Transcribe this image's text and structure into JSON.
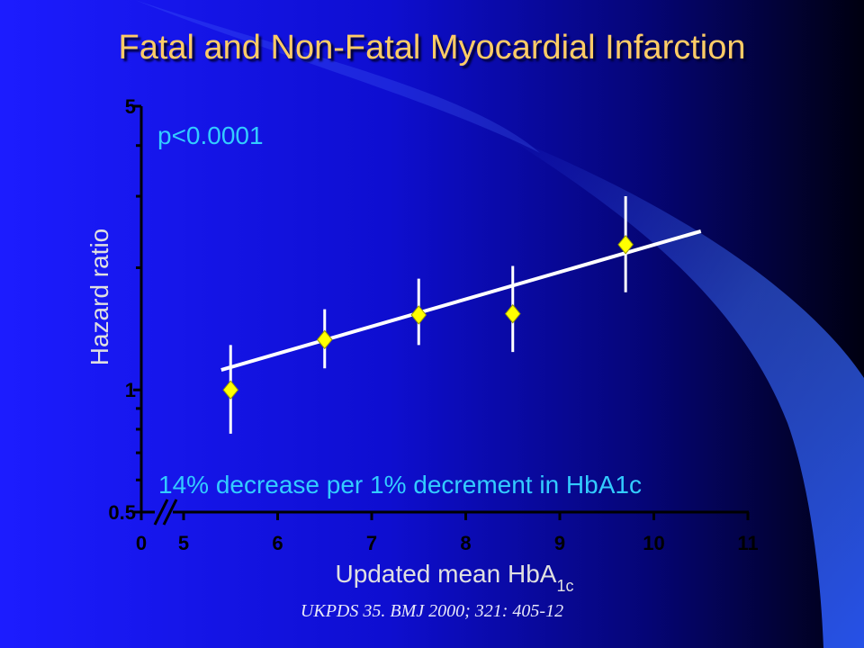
{
  "slide": {
    "title": "Fatal and Non-Fatal Myocardial Infarction",
    "citation": "UKPDS 35. BMJ 2000; 321: 405-12",
    "colors": {
      "background_left": "#1a1aff",
      "background_right": "#000018",
      "title": "#FFCC66",
      "annotation": "#33CCFF",
      "marker": "#FFFF00",
      "axis_label": "#E0E0E0"
    }
  },
  "chart_data": {
    "type": "scatter",
    "title": "Fatal and Non-Fatal Myocardial Infarction",
    "xlabel": "Updated mean HbA",
    "xlabel_subscript": "1c",
    "ylabel": "Hazard ratio",
    "y_scale": "log",
    "ylim": [
      0.5,
      5
    ],
    "y_tick_labels": [
      {
        "value": 5,
        "label": "5"
      },
      {
        "value": 1,
        "label": "1"
      },
      {
        "value": 0.5,
        "label": "0.5"
      }
    ],
    "y_minor_ticks": [
      0.6,
      0.7,
      0.8,
      0.9,
      2,
      3,
      4
    ],
    "x_axis_break": true,
    "x_tick_labels": [
      {
        "value": 0,
        "label": "0"
      },
      {
        "value": 5,
        "label": "5"
      },
      {
        "value": 6,
        "label": "6"
      },
      {
        "value": 7,
        "label": "7"
      },
      {
        "value": 8,
        "label": "8"
      },
      {
        "value": 9,
        "label": "9"
      },
      {
        "value": 10,
        "label": "10"
      },
      {
        "value": 11,
        "label": "11"
      }
    ],
    "points": [
      {
        "x": 5.5,
        "y": 1.0,
        "ci": [
          0.78,
          1.29
        ]
      },
      {
        "x": 6.5,
        "y": 1.33,
        "ci": [
          1.13,
          1.58
        ]
      },
      {
        "x": 7.5,
        "y": 1.53,
        "ci": [
          1.29,
          1.88
        ]
      },
      {
        "x": 8.5,
        "y": 1.54,
        "ci": [
          1.24,
          2.02
        ]
      },
      {
        "x": 9.7,
        "y": 2.28,
        "ci": [
          1.74,
          3.0
        ]
      }
    ],
    "trend_line": {
      "x": [
        5.4,
        10.5
      ],
      "y": [
        1.12,
        2.46
      ]
    },
    "annotations": [
      {
        "text": "p<0.0001",
        "position": "top-left"
      },
      {
        "text": "14% decrease per 1% decrement in HbA1c",
        "position": "bottom"
      }
    ],
    "grid": false,
    "legend": "none"
  }
}
